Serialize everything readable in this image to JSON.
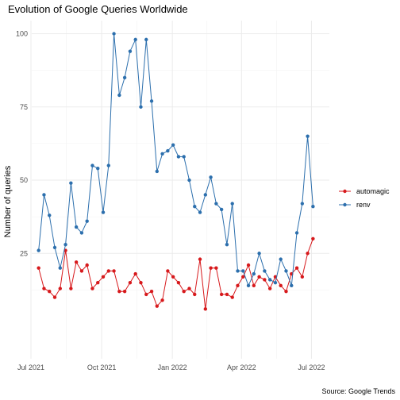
{
  "chart_data": {
    "type": "line",
    "title": "Evolution of Google Queries Worldwide",
    "ylabel": "Number of queries",
    "xlabel": "",
    "caption": "Source: Google Trends",
    "x_ticks": [
      {
        "date": "2021-07-01",
        "label": "Jul 2021"
      },
      {
        "date": "2021-10-01",
        "label": "Oct 2021"
      },
      {
        "date": "2022-01-01",
        "label": "Jan 2022"
      },
      {
        "date": "2022-04-01",
        "label": "Apr 2022"
      },
      {
        "date": "2022-07-01",
        "label": "Jul 2022"
      }
    ],
    "xlim": [
      "2021-07-01",
      "2022-07-15"
    ],
    "y_ticks": [
      25,
      50,
      75,
      100
    ],
    "ylim": [
      0,
      100
    ],
    "grid": true,
    "legend_position": "right",
    "dates": [
      "2021-07-11",
      "2021-07-18",
      "2021-07-25",
      "2021-08-01",
      "2021-08-08",
      "2021-08-15",
      "2021-08-22",
      "2021-08-29",
      "2021-09-05",
      "2021-09-12",
      "2021-09-19",
      "2021-09-26",
      "2021-10-03",
      "2021-10-10",
      "2021-10-17",
      "2021-10-24",
      "2021-10-31",
      "2021-11-07",
      "2021-11-14",
      "2021-11-21",
      "2021-11-28",
      "2021-12-05",
      "2021-12-12",
      "2021-12-19",
      "2021-12-26",
      "2022-01-02",
      "2022-01-09",
      "2022-01-16",
      "2022-01-23",
      "2022-01-30",
      "2022-02-06",
      "2022-02-13",
      "2022-02-20",
      "2022-02-27",
      "2022-03-06",
      "2022-03-13",
      "2022-03-20",
      "2022-03-27",
      "2022-04-03",
      "2022-04-10",
      "2022-04-17",
      "2022-04-24",
      "2022-05-01",
      "2022-05-08",
      "2022-05-15",
      "2022-05-22",
      "2022-05-29",
      "2022-06-05",
      "2022-06-12",
      "2022-06-19",
      "2022-06-26",
      "2022-07-03",
      "2022-07-10"
    ],
    "series": [
      {
        "name": "automagic",
        "color": "#d7191c",
        "values": [
          20,
          13,
          12,
          10,
          13,
          26,
          13,
          22,
          19,
          21,
          13,
          15,
          17,
          19,
          19,
          12,
          12,
          15,
          18,
          15,
          11,
          12,
          7,
          9,
          19,
          17,
          15,
          12,
          13,
          11,
          23,
          6,
          20,
          20,
          11,
          11,
          10,
          14,
          17,
          21,
          14,
          17,
          16,
          13,
          17,
          14,
          12,
          18,
          20,
          17,
          25,
          30,
          null
        ]
      },
      {
        "name": "renv",
        "color": "#2c6fad",
        "values": [
          26,
          45,
          38,
          27,
          20,
          28,
          49,
          34,
          32,
          36,
          55,
          54,
          39,
          55,
          100,
          79,
          85,
          94,
          98,
          75,
          98,
          77,
          53,
          59,
          60,
          62,
          58,
          58,
          50,
          41,
          39,
          45,
          51,
          42,
          40,
          28,
          42,
          19,
          19,
          14,
          18,
          25,
          19,
          16,
          15,
          23,
          19,
          14,
          32,
          42,
          65,
          41,
          null
        ]
      }
    ]
  }
}
